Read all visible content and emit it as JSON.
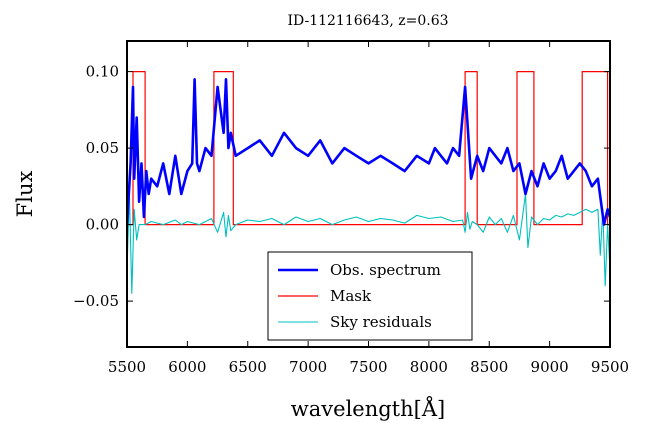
{
  "chart_data": {
    "type": "line",
    "title": "ID-112116643, z=0.63",
    "xlabel": "wavelength[Å]",
    "ylabel": "Flux",
    "xlim": [
      5500,
      9500
    ],
    "ylim": [
      -0.08,
      0.12
    ],
    "x_ticks": [
      5500,
      6000,
      6500,
      7000,
      7500,
      8000,
      8500,
      9000,
      9500
    ],
    "x_tick_labels": [
      "5500",
      "6000",
      "6500",
      "7000",
      "7500",
      "8000",
      "8500",
      "9000",
      "9500"
    ],
    "y_ticks": [
      -0.05,
      0.0,
      0.05,
      0.1
    ],
    "y_tick_labels": [
      "−0.05",
      "0.00",
      "0.05",
      "0.10"
    ],
    "grid": false,
    "legend_position": "bottom-center",
    "series": [
      {
        "name": "Obs. spectrum",
        "color": "#0000ff",
        "style": "thick",
        "x": [
          5500,
          5530,
          5550,
          5560,
          5580,
          5600,
          5620,
          5640,
          5660,
          5680,
          5700,
          5750,
          5800,
          5850,
          5900,
          5950,
          6000,
          6040,
          6060,
          6080,
          6100,
          6150,
          6200,
          6250,
          6300,
          6320,
          6340,
          6360,
          6400,
          6500,
          6600,
          6700,
          6800,
          6900,
          7000,
          7100,
          7200,
          7300,
          7400,
          7500,
          7600,
          7700,
          7800,
          7900,
          8000,
          8050,
          8100,
          8150,
          8200,
          8250,
          8300,
          8350,
          8400,
          8450,
          8500,
          8550,
          8600,
          8650,
          8700,
          8750,
          8800,
          8850,
          8900,
          8950,
          9000,
          9050,
          9100,
          9150,
          9200,
          9250,
          9300,
          9350,
          9400,
          9450,
          9480,
          9500
        ],
        "y": [
          0.0,
          0.04,
          0.09,
          0.03,
          0.07,
          0.015,
          0.04,
          0.005,
          0.035,
          0.02,
          0.03,
          0.025,
          0.04,
          0.02,
          0.045,
          0.02,
          0.035,
          0.04,
          0.095,
          0.04,
          0.035,
          0.05,
          0.045,
          0.09,
          0.06,
          0.095,
          0.05,
          0.06,
          0.045,
          0.05,
          0.055,
          0.045,
          0.06,
          0.05,
          0.045,
          0.055,
          0.04,
          0.05,
          0.045,
          0.04,
          0.045,
          0.04,
          0.035,
          0.045,
          0.04,
          0.05,
          0.045,
          0.04,
          0.05,
          0.045,
          0.09,
          0.03,
          0.045,
          0.035,
          0.05,
          0.045,
          0.04,
          0.05,
          0.035,
          0.04,
          0.02,
          0.035,
          0.025,
          0.04,
          0.03,
          0.035,
          0.045,
          0.03,
          0.035,
          0.04,
          0.035,
          0.025,
          0.03,
          0.0,
          0.01,
          0.005
        ]
      },
      {
        "name": "Mask",
        "color": "#ff0000",
        "style": "step",
        "x": [
          5500,
          5550,
          5550,
          5650,
          5650,
          6220,
          6220,
          6380,
          6380,
          8300,
          8300,
          8400,
          8400,
          8730,
          8730,
          8870,
          8870,
          9270,
          9270,
          9480,
          9480,
          9500
        ],
        "y": [
          0.0,
          0.0,
          0.1,
          0.1,
          0.0,
          0.0,
          0.1,
          0.1,
          0.0,
          0.0,
          0.1,
          0.1,
          0.0,
          0.0,
          0.1,
          0.1,
          0.0,
          0.0,
          0.1,
          0.1,
          0.0,
          0.0
        ]
      },
      {
        "name": "Sky residuals",
        "color": "#00bfbf",
        "style": "thin",
        "x": [
          5500,
          5520,
          5540,
          5560,
          5580,
          5600,
          5650,
          5700,
          5800,
          5900,
          5950,
          6000,
          6100,
          6200,
          6250,
          6300,
          6320,
          6340,
          6360,
          6400,
          6500,
          6600,
          6700,
          6800,
          6900,
          7000,
          7100,
          7200,
          7300,
          7400,
          7500,
          7600,
          7700,
          7800,
          7900,
          8000,
          8100,
          8200,
          8280,
          8300,
          8320,
          8340,
          8360,
          8400,
          8450,
          8500,
          8550,
          8600,
          8650,
          8700,
          8750,
          8800,
          8820,
          8850,
          8900,
          8950,
          9000,
          9050,
          9100,
          9150,
          9200,
          9250,
          9300,
          9350,
          9400,
          9420,
          9440,
          9460,
          9480,
          9500
        ],
        "y": [
          -0.03,
          0.02,
          -0.045,
          0.01,
          -0.01,
          0.0,
          0.0,
          0.002,
          0.0,
          0.003,
          0.0,
          0.002,
          0.0,
          0.004,
          -0.005,
          0.008,
          -0.008,
          0.006,
          -0.004,
          0.0,
          0.003,
          0.002,
          0.004,
          0.0,
          0.005,
          0.002,
          0.004,
          0.0,
          0.003,
          0.005,
          0.002,
          0.004,
          0.003,
          0.001,
          0.006,
          0.004,
          0.005,
          0.002,
          0.003,
          -0.005,
          0.008,
          -0.003,
          0.002,
          0.0,
          -0.005,
          0.005,
          0.0,
          0.004,
          -0.005,
          0.006,
          -0.01,
          0.02,
          -0.015,
          0.005,
          0.0,
          0.004,
          0.003,
          0.006,
          0.005,
          0.007,
          0.006,
          0.008,
          0.01,
          0.008,
          0.01,
          -0.02,
          0.01,
          -0.04,
          0.0,
          -0.03
        ]
      }
    ]
  }
}
